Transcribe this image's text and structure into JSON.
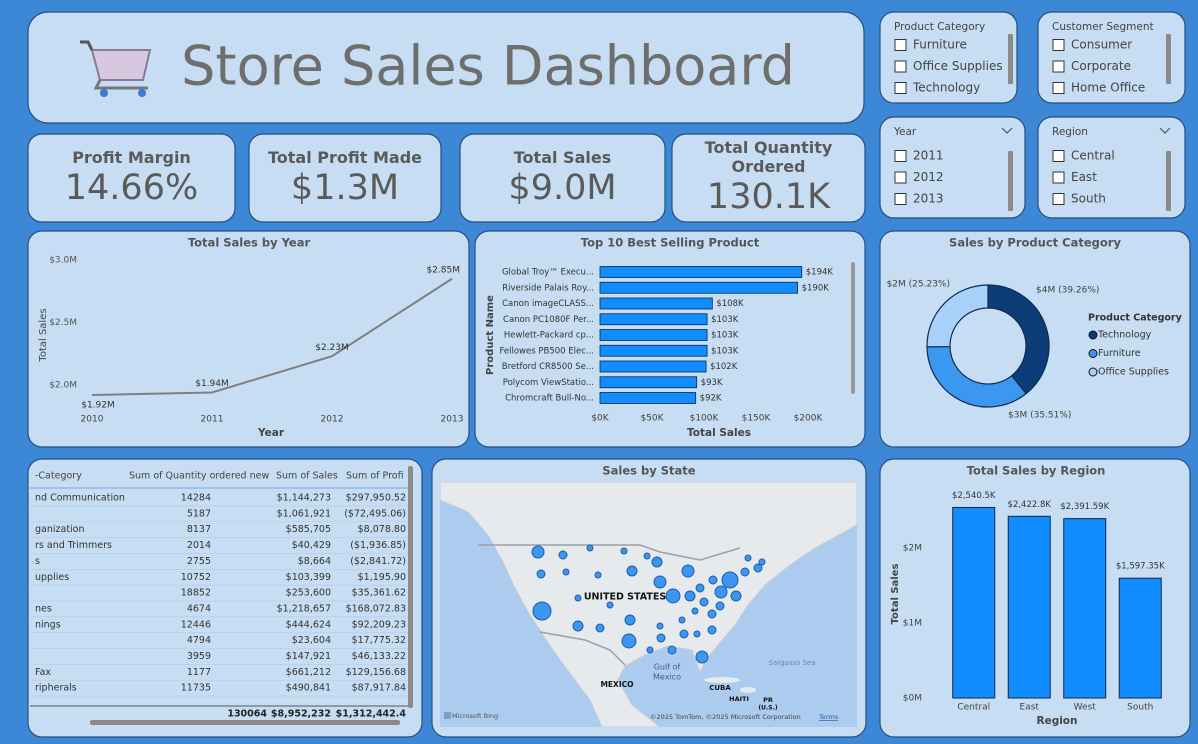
{
  "header": {
    "title": "Store Sales Dashboard"
  },
  "kpis": [
    {
      "label": "Profit Margin",
      "value": "14.66%"
    },
    {
      "label": "Total Profit Made",
      "value": "$1.3M"
    },
    {
      "label": "Total Sales",
      "value": "$9.0M"
    },
    {
      "label": "Total Quantity Ordered",
      "value": "130.1K"
    }
  ],
  "filters": [
    {
      "title": "Product Category",
      "items": [
        "Furniture",
        "Office Supplies",
        "Technology"
      ]
    },
    {
      "title": "Customer Segment",
      "items": [
        "Consumer",
        "Corporate",
        "Home Office"
      ]
    },
    {
      "title": "Year",
      "items": [
        "2011",
        "2012",
        "2013"
      ]
    },
    {
      "title": "Region",
      "items": [
        "Central",
        "East",
        "South"
      ]
    }
  ],
  "chart_data": [
    {
      "type": "line",
      "title": "Total Sales by Year",
      "xlabel": "Year",
      "ylabel": "Total Sales",
      "categories": [
        "2010",
        "2011",
        "2012",
        "2013"
      ],
      "values": [
        1920000,
        1940000,
        2230000,
        2850000
      ],
      "value_labels": [
        "$1.92M",
        "$1.94M",
        "$2.23M",
        "$2.85M"
      ],
      "color": "#7f7f7f",
      "ylim": [
        1800000,
        3000000
      ],
      "yticks": [
        {
          "value": 2000000,
          "label": "$2.0M"
        },
        {
          "value": 2500000,
          "label": "$2.5M"
        },
        {
          "value": 3000000,
          "label": "$3.0M"
        }
      ]
    },
    {
      "type": "bar",
      "orientation": "horizontal",
      "title": "Top 10 Best Selling Product",
      "xlabel": "Total Sales",
      "ylabel": "Product Name",
      "categories": [
        "Global Troy™ Execu...",
        "Riverside Palais Roy...",
        "Canon imageCLASS...",
        "Canon PC1080F Per...",
        "Hewlett-Packard cp...",
        "Fellowes PB500 Elec...",
        "Bretford CR8500 Se...",
        "Polycom ViewStatio...",
        "Chromcraft Bull-No..."
      ],
      "values": [
        194000,
        190000,
        108000,
        103000,
        103000,
        103000,
        102000,
        93000,
        92000
      ],
      "value_labels": [
        "$194K",
        "$190K",
        "$108K",
        "$103K",
        "$103K",
        "$103K",
        "$102K",
        "$93K",
        "$92K"
      ],
      "color": "#118dff",
      "xlim": [
        0,
        200000
      ],
      "xticks": [
        {
          "value": 0,
          "label": "$0K"
        },
        {
          "value": 50000,
          "label": "$50K"
        },
        {
          "value": 100000,
          "label": "$100K"
        },
        {
          "value": 150000,
          "label": "$150K"
        },
        {
          "value": 200000,
          "label": "$200K"
        }
      ]
    },
    {
      "type": "donut",
      "title": "Sales by Product Category",
      "legend_title": "Product Category",
      "categories": [
        "Technology",
        "Furniture",
        "Office Supplies"
      ],
      "values": [
        39.26,
        35.51,
        25.23
      ],
      "value_labels": [
        "$4M (39.26%)",
        "$3M (35.51%)",
        "$2M (25.23%)"
      ],
      "colors": [
        "#0c3d78",
        "#3b97f0",
        "#a9d0f8"
      ]
    },
    {
      "type": "bar",
      "title": "Total Sales by Region",
      "xlabel": "Region",
      "ylabel": "Total Sales",
      "categories": [
        "Central",
        "East",
        "West",
        "South"
      ],
      "values": [
        2540500,
        2422800,
        2391590,
        1597350
      ],
      "value_labels": [
        "$2,540.5K",
        "$2,422.8K",
        "$2,391.59K",
        "$1,597.35K"
      ],
      "color": "#118dff",
      "ylim": [
        0,
        2800000
      ],
      "yticks": [
        {
          "value": 0,
          "label": "$0M"
        },
        {
          "value": 1000000,
          "label": "$1M"
        },
        {
          "value": 2000000,
          "label": "$2M"
        }
      ]
    }
  ],
  "map": {
    "title": "Sales by State",
    "labels": [
      "UNITED STATES",
      "Gulf of",
      "Mexico",
      "MEXICO",
      "CUBA",
      "HAITI",
      "PR",
      "(U.S.)",
      "Sargasso Sea"
    ],
    "brand": "Microsoft Bing",
    "attribution": "©2025 TomTom, ©2025 Microsoft Corporation",
    "terms": "Terms"
  },
  "table": {
    "columns": [
      "-Category",
      "Sum of Quantity ordered new",
      "Sum of Sales",
      "Sum of Profi"
    ],
    "rows": [
      [
        "nd Communication",
        "14284",
        "$1,144,273",
        "$297,950.52"
      ],
      [
        null,
        "5187",
        "$1,061,921",
        "($72,495.06)"
      ],
      [
        "ganization",
        "8137",
        "$585,705",
        "$8,078.80"
      ],
      [
        "rs and Trimmers",
        "2014",
        "$40,429",
        "($1,936.85)"
      ],
      [
        "s",
        "2755",
        "$8,664",
        "($2,841.72)"
      ],
      [
        "upplies",
        "10752",
        "$103,399",
        "$1,195.90"
      ],
      [
        null,
        "18852",
        "$253,600",
        "$35,361.62"
      ],
      [
        "nes",
        "4674",
        "$1,218,657",
        "$168,072.83"
      ],
      [
        "nings",
        "12446",
        "$444,624",
        "$92,209.23"
      ],
      [
        null,
        "4794",
        "$23,604",
        "$17,775.32"
      ],
      [
        null,
        "3959",
        "$147,921",
        "$46,133.22"
      ],
      [
        "Fax",
        "1177",
        "$661,212",
        "$129,156.68"
      ],
      [
        "ripherals",
        "11735",
        "$490,841",
        "$87,917.84"
      ]
    ],
    "total": [
      null,
      "130064",
      "$8,952,232",
      "$1,312,442.4"
    ]
  }
}
